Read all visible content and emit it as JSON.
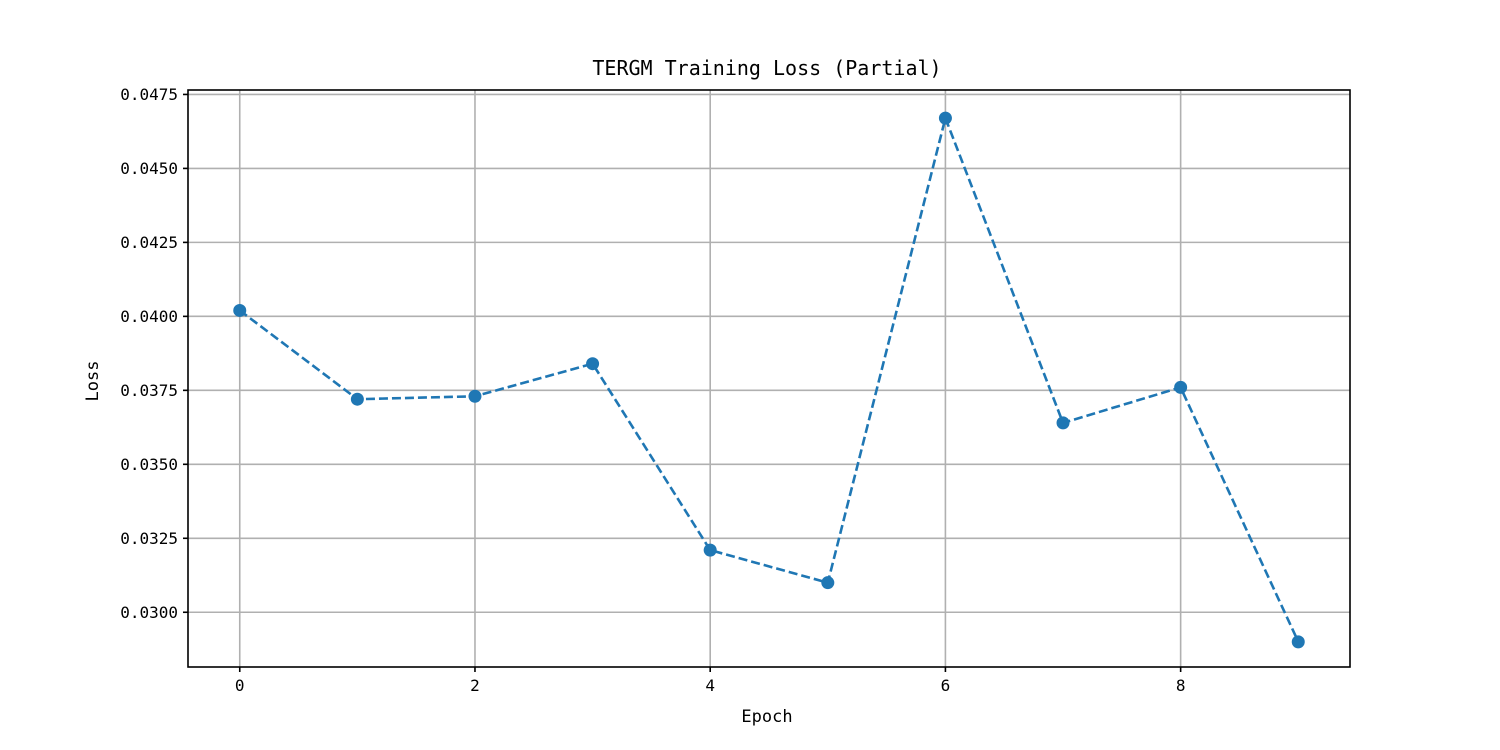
{
  "chart_data": {
    "type": "line",
    "title": "TERGM Training Loss (Partial)",
    "xlabel": "Epoch",
    "ylabel": "Loss",
    "xlim": [
      -0.44,
      9.44
    ],
    "ylim": [
      0.02815,
      0.04765
    ],
    "xticks": [
      0,
      2,
      4,
      6,
      8
    ],
    "yticks": [
      0.03,
      0.0325,
      0.035,
      0.0375,
      0.04,
      0.0425,
      0.045,
      0.0475
    ],
    "xtick_labels": [
      "0",
      "2",
      "4",
      "6",
      "8"
    ],
    "ytick_labels": [
      "0.0300",
      "0.0325",
      "0.0350",
      "0.0375",
      "0.0400",
      "0.0425",
      "0.0450",
      "0.0475"
    ],
    "grid": true,
    "line_style": "dashed",
    "marker": "circle",
    "color": "#1f77b4",
    "series": [
      {
        "x": [
          0,
          1,
          2,
          3,
          4,
          5,
          6,
          7,
          8,
          9
        ],
        "values": [
          0.0402,
          0.0372,
          0.0373,
          0.0384,
          0.0321,
          0.031,
          0.0467,
          0.0364,
          0.0376,
          0.029
        ]
      }
    ]
  }
}
